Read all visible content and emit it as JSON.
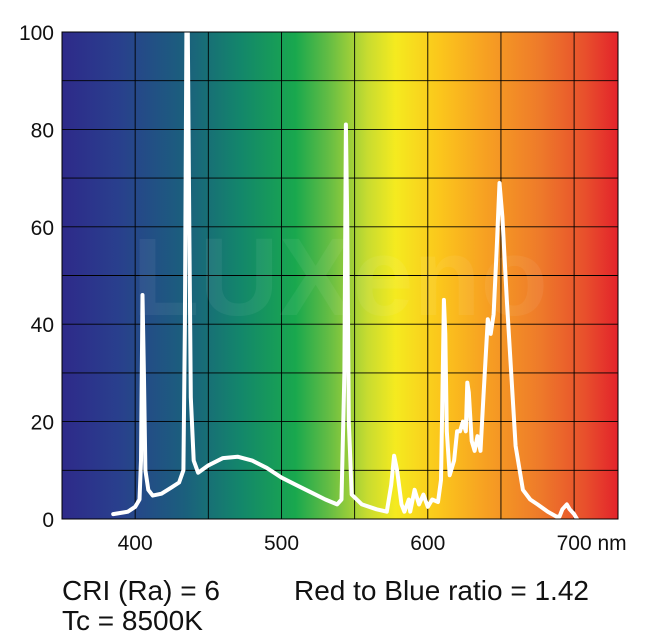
{
  "chart_data": {
    "type": "line",
    "xlim": [
      350,
      730
    ],
    "ylim": [
      0,
      100
    ],
    "x_ticks": [
      400,
      500,
      600,
      700
    ],
    "x_tick_labels": [
      "400",
      "500",
      "600",
      "700 nm"
    ],
    "y_ticks": [
      0,
      20,
      40,
      60,
      80,
      100
    ],
    "y_tick_labels": [
      "0",
      "20",
      "40",
      "60",
      "80",
      "100"
    ],
    "grid": true,
    "background": "visible-spectrum gradient",
    "watermark": "LUXeno",
    "series": [
      {
        "color": "#ffffff",
        "points": [
          [
            385,
            1
          ],
          [
            395,
            1.5
          ],
          [
            400,
            2.5
          ],
          [
            403,
            4
          ],
          [
            404,
            12
          ],
          [
            405,
            46
          ],
          [
            406,
            30
          ],
          [
            407,
            10
          ],
          [
            409,
            6
          ],
          [
            412,
            4.8
          ],
          [
            418,
            5.2
          ],
          [
            425,
            6.5
          ],
          [
            430,
            7.5
          ],
          [
            433,
            10
          ],
          [
            434,
            40
          ],
          [
            435,
            100
          ],
          [
            436,
            100
          ],
          [
            437,
            60
          ],
          [
            438,
            25
          ],
          [
            440,
            12
          ],
          [
            443,
            9.5
          ],
          [
            450,
            11
          ],
          [
            460,
            12.5
          ],
          [
            470,
            12.8
          ],
          [
            480,
            12
          ],
          [
            490,
            10.5
          ],
          [
            500,
            8.5
          ],
          [
            510,
            7
          ],
          [
            520,
            5.5
          ],
          [
            530,
            4
          ],
          [
            538,
            3
          ],
          [
            541,
            4
          ],
          [
            543,
            30
          ],
          [
            544,
            81
          ],
          [
            545,
            60
          ],
          [
            546,
            20
          ],
          [
            548,
            5
          ],
          [
            555,
            3
          ],
          [
            565,
            2
          ],
          [
            572,
            1.5
          ],
          [
            575,
            7
          ],
          [
            577,
            13
          ],
          [
            579,
            10
          ],
          [
            582,
            3
          ],
          [
            584,
            1.5
          ],
          [
            587,
            4
          ],
          [
            588,
            1.5
          ],
          [
            591,
            6
          ],
          [
            594,
            3
          ],
          [
            597,
            5
          ],
          [
            600,
            2.5
          ],
          [
            603,
            4
          ],
          [
            607,
            3.5
          ],
          [
            609,
            8
          ],
          [
            610,
            25
          ],
          [
            611,
            45
          ],
          [
            612,
            38
          ],
          [
            613,
            18
          ],
          [
            615,
            9
          ],
          [
            618,
            12
          ],
          [
            620,
            18
          ],
          [
            622,
            18
          ],
          [
            624,
            20
          ],
          [
            626,
            18
          ],
          [
            627,
            28
          ],
          [
            628,
            26
          ],
          [
            630,
            16
          ],
          [
            632,
            14
          ],
          [
            634,
            17
          ],
          [
            636,
            14
          ],
          [
            638,
            25
          ],
          [
            641,
            41
          ],
          [
            643,
            38
          ],
          [
            645,
            42
          ],
          [
            647,
            55
          ],
          [
            649,
            69
          ],
          [
            651,
            62
          ],
          [
            654,
            45
          ],
          [
            657,
            30
          ],
          [
            660,
            15
          ],
          [
            665,
            6
          ],
          [
            670,
            4
          ],
          [
            675,
            3
          ],
          [
            682,
            1.5
          ],
          [
            688,
            0.5
          ],
          [
            690,
            0.5
          ],
          [
            692,
            2
          ],
          [
            695,
            3
          ],
          [
            697,
            2
          ],
          [
            700,
            1
          ],
          [
            702,
            0
          ]
        ]
      }
    ]
  },
  "info": {
    "cri": "CRI (Ra) = 6",
    "tc": "Tc = 8500K",
    "ratio": "Red to Blue ratio = 1.42"
  }
}
